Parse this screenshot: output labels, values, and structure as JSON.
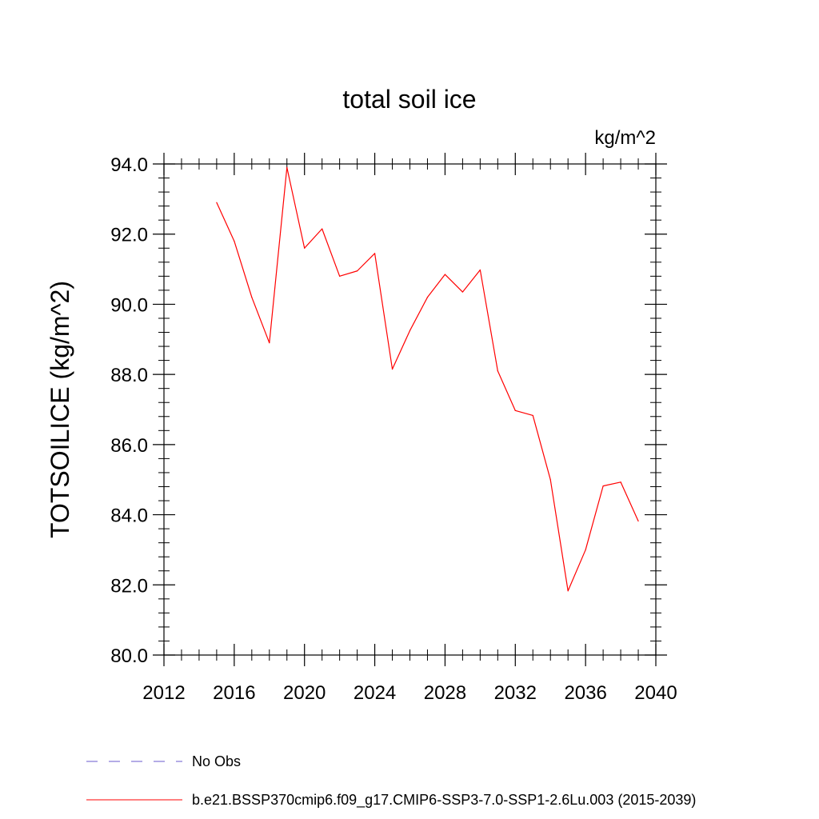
{
  "chart_data": {
    "type": "line",
    "title": "total soil ice",
    "units_label": "kg/m^2",
    "ylabel": "TOTSOILICE  (kg/m^2)",
    "xlabel": "",
    "xlim": [
      2012,
      2040
    ],
    "ylim": [
      80.0,
      94.0
    ],
    "x_ticks": [
      2012,
      2016,
      2020,
      2024,
      2028,
      2032,
      2036,
      2040
    ],
    "x_tick_labels": [
      "2012",
      "2016",
      "2020",
      "2024",
      "2028",
      "2032",
      "2036",
      "2040"
    ],
    "y_ticks": [
      80,
      82,
      84,
      86,
      88,
      90,
      92,
      94
    ],
    "y_tick_labels": [
      "80.0",
      "82.0",
      "84.0",
      "86.0",
      "88.0",
      "90.0",
      "92.0",
      "94.0"
    ],
    "x_minor_step": 1,
    "y_minor_step": 0.4,
    "grid": false,
    "legend_position": "bottom-left, below plot",
    "series": [
      {
        "name": "b.e21.BSSP370cmip6.f09_g17.CMIP6-SSP3-7.0-SSP1-2.6Lu.003 (2015-2039)",
        "color": "#ff0000",
        "dash": "solid",
        "x": [
          2015,
          2016,
          2017,
          2018,
          2019,
          2020,
          2021,
          2022,
          2023,
          2024,
          2025,
          2026,
          2027,
          2028,
          2029,
          2030,
          2031,
          2032,
          2033,
          2034,
          2035,
          2036,
          2037,
          2038,
          2039
        ],
        "values": [
          92.9,
          91.8,
          90.2,
          88.9,
          93.9,
          91.6,
          92.15,
          90.8,
          90.95,
          91.45,
          88.15,
          89.25,
          90.2,
          90.85,
          90.35,
          90.98,
          88.1,
          86.97,
          86.83,
          85.0,
          81.83,
          83.0,
          84.82,
          84.93,
          83.82
        ]
      }
    ],
    "legend": [
      {
        "label": "No Obs",
        "color": "#6a5acd",
        "dash": "dashed"
      },
      {
        "label": "b.e21.BSSP370cmip6.f09_g17.CMIP6-SSP3-7.0-SSP1-2.6Lu.003 (2015-2039)",
        "color": "#ff0000",
        "dash": "solid"
      }
    ]
  }
}
